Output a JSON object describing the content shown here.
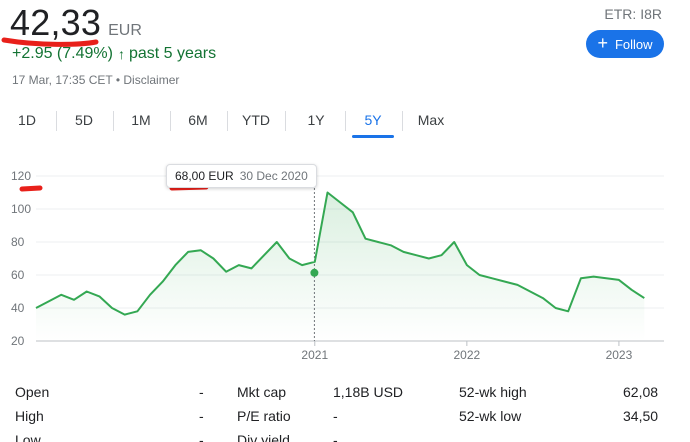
{
  "quote": {
    "price": "42,33",
    "currency": "EUR",
    "change": "+2.95 (7.49%)",
    "change_arrow": "↑",
    "period": "past 5 years",
    "timestamp": "17 Mar, 17:35 CET • Disclaimer",
    "ticker": "ETR: I8R",
    "follow_label": "Follow"
  },
  "tabs": [
    "1D",
    "5D",
    "1M",
    "6M",
    "YTD",
    "1Y",
    "5Y",
    "Max"
  ],
  "active_tab": "5Y",
  "tooltip": {
    "value": "68,00 EUR",
    "date": "30 Dec 2020"
  },
  "colors": {
    "line": "#34a853",
    "accent": "#1a73e8",
    "positive": "#137333",
    "annotation": "#e8201a"
  },
  "chart_data": {
    "type": "area",
    "ylim": [
      20,
      120
    ],
    "yticks": [
      "120",
      "100",
      "80",
      "60",
      "40",
      "20"
    ],
    "xticks": [
      "2021",
      "2022",
      "2023"
    ],
    "x": [
      "2019-03",
      "2019-04",
      "2019-05",
      "2019-06",
      "2019-07",
      "2019-08",
      "2019-09",
      "2019-10",
      "2019-11",
      "2019-12",
      "2020-01",
      "2020-02",
      "2020-03",
      "2020-04",
      "2020-05",
      "2020-06",
      "2020-07",
      "2020-08",
      "2020-09",
      "2020-10",
      "2020-11",
      "2020-12",
      "2021-01",
      "2021-02",
      "2021-03",
      "2021-04",
      "2021-05",
      "2021-06",
      "2021-07",
      "2021-08",
      "2021-09",
      "2021-10",
      "2021-11",
      "2021-12",
      "2022-01",
      "2022-02",
      "2022-03",
      "2022-04",
      "2022-05",
      "2022-06",
      "2022-07",
      "2022-08",
      "2022-09",
      "2022-10",
      "2022-11",
      "2022-12",
      "2023-01",
      "2023-02",
      "2023-03"
    ],
    "series": [
      {
        "values": [
          40,
          44,
          48,
          45,
          50,
          47,
          40,
          36,
          38,
          48,
          56,
          66,
          74,
          75,
          70,
          62,
          66,
          64,
          72,
          80,
          70,
          66,
          68,
          110,
          104,
          98,
          82,
          80,
          78,
          74,
          72,
          70,
          72,
          80,
          66,
          60,
          58,
          56,
          54,
          50,
          46,
          40,
          38,
          58,
          59,
          58,
          57,
          51,
          46
        ]
      }
    ]
  },
  "stats": {
    "rows": [
      [
        {
          "label": "Open",
          "value": "-"
        },
        {
          "label": "Mkt cap",
          "value": "1,18B USD"
        },
        {
          "label": "52-wk high",
          "value": "62,08"
        }
      ],
      [
        {
          "label": "High",
          "value": "-"
        },
        {
          "label": "P/E ratio",
          "value": "-"
        },
        {
          "label": "52-wk low",
          "value": "34,50"
        }
      ],
      [
        {
          "label": "Low",
          "value": "-"
        },
        {
          "label": "Div yield",
          "value": "-"
        },
        {
          "label": "",
          "value": ""
        }
      ]
    ]
  }
}
